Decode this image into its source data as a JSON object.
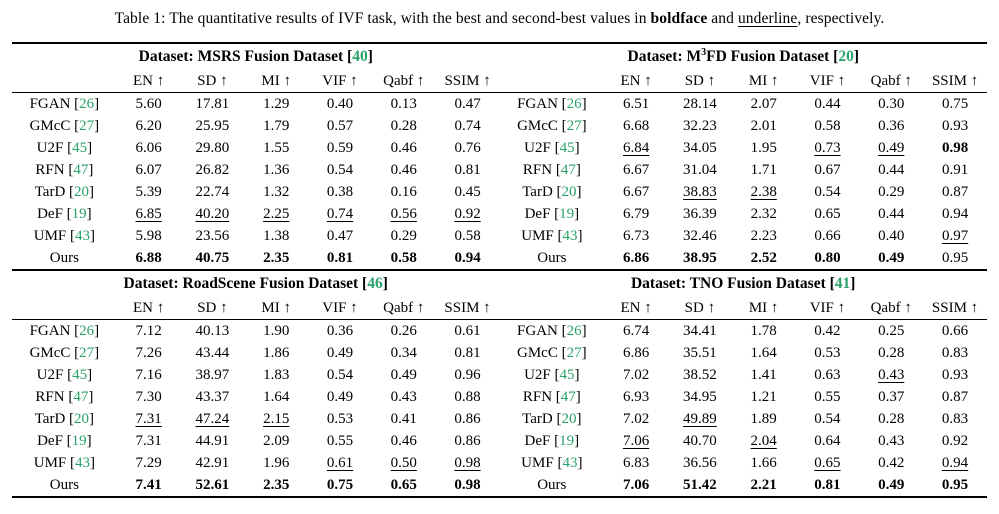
{
  "caption": {
    "part1": "Table 1: The quantitative results of IVF task, with the best and second-best values in ",
    "bold_word": "boldface",
    "part2": " and ",
    "underline_word": "underline",
    "part3": ", respectively."
  },
  "colors": {
    "citation_green": "#29a269",
    "text": "#000000",
    "background": "#ffffff"
  },
  "metric_headers": [
    "EN ↑",
    "SD ↑",
    "MI ↑",
    "VIF ↑",
    "Qabf ↑",
    "SSIM ↑"
  ],
  "panels": [
    [
      0,
      1
    ],
    [
      2,
      3
    ]
  ],
  "blocks": [
    {
      "title_pre": "Dataset: MSRS Fusion Dataset",
      "title_sup": "",
      "title_post": "",
      "cite": "40",
      "rows": [
        {
          "method": "FGAN",
          "cite": "26",
          "values": [
            "5.60",
            "17.81",
            "1.29",
            "0.40",
            "0.13",
            "0.47"
          ],
          "styles": [
            "",
            "",
            "",
            "",
            "",
            ""
          ]
        },
        {
          "method": "GMcC",
          "cite": "27",
          "values": [
            "6.20",
            "25.95",
            "1.79",
            "0.57",
            "0.28",
            "0.74"
          ],
          "styles": [
            "",
            "",
            "",
            "",
            "",
            ""
          ]
        },
        {
          "method": "U2F",
          "cite": "45",
          "values": [
            "6.06",
            "29.80",
            "1.55",
            "0.59",
            "0.46",
            "0.76"
          ],
          "styles": [
            "",
            "",
            "",
            "",
            "",
            ""
          ]
        },
        {
          "method": "RFN",
          "cite": "47",
          "values": [
            "6.07",
            "26.82",
            "1.36",
            "0.54",
            "0.46",
            "0.81"
          ],
          "styles": [
            "",
            "",
            "",
            "",
            "",
            ""
          ]
        },
        {
          "method": "TarD",
          "cite": "20",
          "values": [
            "5.39",
            "22.74",
            "1.32",
            "0.38",
            "0.16",
            "0.45"
          ],
          "styles": [
            "",
            "",
            "",
            "",
            "",
            ""
          ]
        },
        {
          "method": "DeF",
          "cite": "19",
          "values": [
            "6.85",
            "40.20",
            "2.25",
            "0.74",
            "0.56",
            "0.92"
          ],
          "styles": [
            "u",
            "u",
            "u",
            "u",
            "u",
            "u"
          ]
        },
        {
          "method": "UMF",
          "cite": "43",
          "values": [
            "5.98",
            "23.56",
            "1.38",
            "0.47",
            "0.29",
            "0.58"
          ],
          "styles": [
            "",
            "",
            "",
            "",
            "",
            ""
          ]
        },
        {
          "method": "Ours",
          "cite": "",
          "values": [
            "6.88",
            "40.75",
            "2.35",
            "0.81",
            "0.58",
            "0.94"
          ],
          "styles": [
            "b",
            "b",
            "b",
            "b",
            "b",
            "b"
          ]
        }
      ]
    },
    {
      "title_pre": "Dataset: M",
      "title_sup": "3",
      "title_post": "FD Fusion Dataset",
      "cite": "20",
      "rows": [
        {
          "method": "FGAN",
          "cite": "26",
          "values": [
            "6.51",
            "28.14",
            "2.07",
            "0.44",
            "0.30",
            "0.75"
          ],
          "styles": [
            "",
            "",
            "",
            "",
            "",
            ""
          ]
        },
        {
          "method": "GMcC",
          "cite": "27",
          "values": [
            "6.68",
            "32.23",
            "2.01",
            "0.58",
            "0.36",
            "0.93"
          ],
          "styles": [
            "",
            "",
            "",
            "",
            "",
            ""
          ]
        },
        {
          "method": "U2F",
          "cite": "45",
          "values": [
            "6.84",
            "34.05",
            "1.95",
            "0.73",
            "0.49",
            "0.98"
          ],
          "styles": [
            "u",
            "",
            "",
            "u",
            "u",
            "b"
          ]
        },
        {
          "method": "RFN",
          "cite": "47",
          "values": [
            "6.67",
            "31.04",
            "1.71",
            "0.67",
            "0.44",
            "0.91"
          ],
          "styles": [
            "",
            "",
            "",
            "",
            "",
            ""
          ]
        },
        {
          "method": "TarD",
          "cite": "20",
          "values": [
            "6.67",
            "38.83",
            "2.38",
            "0.54",
            "0.29",
            "0.87"
          ],
          "styles": [
            "",
            "u",
            "u",
            "",
            "",
            ""
          ]
        },
        {
          "method": "DeF",
          "cite": "19",
          "values": [
            "6.79",
            "36.39",
            "2.32",
            "0.65",
            "0.44",
            "0.94"
          ],
          "styles": [
            "",
            "",
            "",
            "",
            "",
            ""
          ]
        },
        {
          "method": "UMF",
          "cite": "43",
          "values": [
            "6.73",
            "32.46",
            "2.23",
            "0.66",
            "0.40",
            "0.97"
          ],
          "styles": [
            "",
            "",
            "",
            "",
            "",
            "u"
          ]
        },
        {
          "method": "Ours",
          "cite": "",
          "values": [
            "6.86",
            "38.95",
            "2.52",
            "0.80",
            "0.49",
            "0.95"
          ],
          "styles": [
            "b",
            "b",
            "b",
            "b",
            "b",
            ""
          ]
        }
      ]
    },
    {
      "title_pre": "Dataset: RoadScene Fusion Dataset",
      "title_sup": "",
      "title_post": "",
      "cite": "46",
      "rows": [
        {
          "method": "FGAN",
          "cite": "26",
          "values": [
            "7.12",
            "40.13",
            "1.90",
            "0.36",
            "0.26",
            "0.61"
          ],
          "styles": [
            "",
            "",
            "",
            "",
            "",
            ""
          ]
        },
        {
          "method": "GMcC",
          "cite": "27",
          "values": [
            "7.26",
            "43.44",
            "1.86",
            "0.49",
            "0.34",
            "0.81"
          ],
          "styles": [
            "",
            "",
            "",
            "",
            "",
            ""
          ]
        },
        {
          "method": "U2F",
          "cite": "45",
          "values": [
            "7.16",
            "38.97",
            "1.83",
            "0.54",
            "0.49",
            "0.96"
          ],
          "styles": [
            "",
            "",
            "",
            "",
            "",
            ""
          ]
        },
        {
          "method": "RFN",
          "cite": "47",
          "values": [
            "7.30",
            "43.37",
            "1.64",
            "0.49",
            "0.43",
            "0.88"
          ],
          "styles": [
            "",
            "",
            "",
            "",
            "",
            ""
          ]
        },
        {
          "method": "TarD",
          "cite": "20",
          "values": [
            "7.31",
            "47.24",
            "2.15",
            "0.53",
            "0.41",
            "0.86"
          ],
          "styles": [
            "u",
            "u",
            "u",
            "",
            "",
            ""
          ]
        },
        {
          "method": "DeF",
          "cite": "19",
          "values": [
            "7.31",
            "44.91",
            "2.09",
            "0.55",
            "0.46",
            "0.86"
          ],
          "styles": [
            "",
            "",
            "",
            "",
            "",
            ""
          ]
        },
        {
          "method": "UMF",
          "cite": "43",
          "values": [
            "7.29",
            "42.91",
            "1.96",
            "0.61",
            "0.50",
            "0.98"
          ],
          "styles": [
            "",
            "",
            "",
            "u",
            "u",
            "u"
          ]
        },
        {
          "method": "Ours",
          "cite": "",
          "values": [
            "7.41",
            "52.61",
            "2.35",
            "0.75",
            "0.65",
            "0.98"
          ],
          "styles": [
            "b",
            "b",
            "b",
            "b",
            "b",
            "b"
          ]
        }
      ]
    },
    {
      "title_pre": "Dataset: TNO Fusion Dataset",
      "title_sup": "",
      "title_post": "",
      "cite": "41",
      "rows": [
        {
          "method": "FGAN",
          "cite": "26",
          "values": [
            "6.74",
            "34.41",
            "1.78",
            "0.42",
            "0.25",
            "0.66"
          ],
          "styles": [
            "",
            "",
            "",
            "",
            "",
            ""
          ]
        },
        {
          "method": "GMcC",
          "cite": "27",
          "values": [
            "6.86",
            "35.51",
            "1.64",
            "0.53",
            "0.28",
            "0.83"
          ],
          "styles": [
            "",
            "",
            "",
            "",
            "",
            ""
          ]
        },
        {
          "method": "U2F",
          "cite": "45",
          "values": [
            "7.02",
            "38.52",
            "1.41",
            "0.63",
            "0.43",
            "0.93"
          ],
          "styles": [
            "",
            "",
            "",
            "",
            "u",
            ""
          ]
        },
        {
          "method": "RFN",
          "cite": "47",
          "values": [
            "6.93",
            "34.95",
            "1.21",
            "0.55",
            "0.37",
            "0.87"
          ],
          "styles": [
            "",
            "",
            "",
            "",
            "",
            ""
          ]
        },
        {
          "method": "TarD",
          "cite": "20",
          "values": [
            "7.02",
            "49.89",
            "1.89",
            "0.54",
            "0.28",
            "0.83"
          ],
          "styles": [
            "",
            "u",
            "",
            "",
            "",
            ""
          ]
        },
        {
          "method": "DeF",
          "cite": "19",
          "values": [
            "7.06",
            "40.70",
            "2.04",
            "0.64",
            "0.43",
            "0.92"
          ],
          "styles": [
            "u",
            "",
            "u",
            "",
            "",
            ""
          ]
        },
        {
          "method": "UMF",
          "cite": "43",
          "values": [
            "6.83",
            "36.56",
            "1.66",
            "0.65",
            "0.42",
            "0.94"
          ],
          "styles": [
            "",
            "",
            "",
            "u",
            "",
            "u"
          ]
        },
        {
          "method": "Ours",
          "cite": "",
          "values": [
            "7.06",
            "51.42",
            "2.21",
            "0.81",
            "0.49",
            "0.95"
          ],
          "styles": [
            "b",
            "b",
            "b",
            "b",
            "b",
            "b"
          ]
        }
      ]
    }
  ]
}
